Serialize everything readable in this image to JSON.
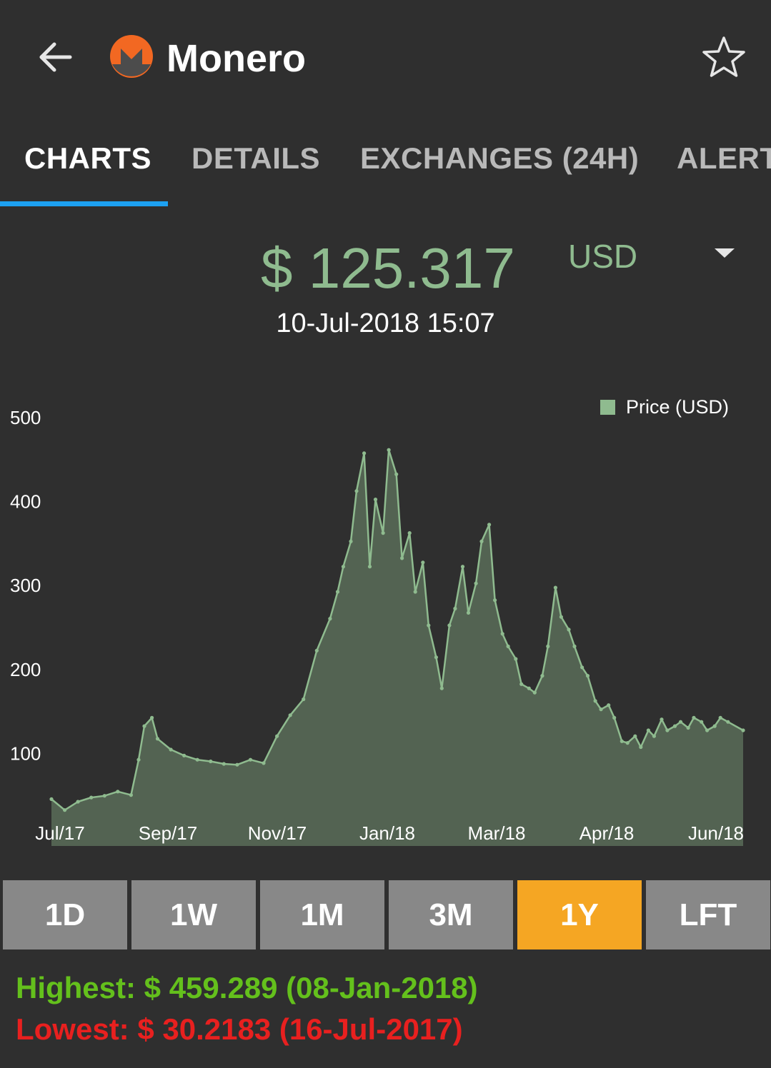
{
  "colors": {
    "background": "#2f2f2f",
    "price_green": "#8fbb8f",
    "tab_indicator": "#1da1f2",
    "range_active": "#f5a623",
    "range_inactive": "#888888",
    "highest": "#64c01c",
    "lowest": "#e8201f"
  },
  "header": {
    "title": "Monero",
    "back_icon": "arrow-left-icon",
    "logo_icon": "monero-logo",
    "favorite_icon": "star-outline-icon"
  },
  "tabs": [
    {
      "label": "CHARTS",
      "active": true
    },
    {
      "label": "DETAILS",
      "active": false
    },
    {
      "label": "EXCHANGES (24H)",
      "active": false
    },
    {
      "label": "ALERT",
      "active": false
    }
  ],
  "price": {
    "value": "$ 125.317",
    "currency": "USD",
    "timestamp": "10-Jul-2018 15:07"
  },
  "chart_data": {
    "type": "area",
    "legend": "Price (USD)",
    "legend_position": "top-right",
    "ylim": [
      0,
      500
    ],
    "yticks": [
      "100",
      "200",
      "300",
      "400",
      "500"
    ],
    "xticks": [
      "Jul/17",
      "Sep/17",
      "Nov/17",
      "Jan/18",
      "Mar/18",
      "Apr/18",
      "Jun/18"
    ],
    "grid": false,
    "series": [
      {
        "name": "Price (USD)",
        "x": [
          "2017-07-10",
          "2017-07-17",
          "2017-07-24",
          "2017-07-31",
          "2017-08-07",
          "2017-08-14",
          "2017-08-21",
          "2017-08-25",
          "2017-08-28",
          "2017-09-01",
          "2017-09-04",
          "2017-09-11",
          "2017-09-18",
          "2017-09-25",
          "2017-10-02",
          "2017-10-09",
          "2017-10-16",
          "2017-10-23",
          "2017-10-30",
          "2017-11-06",
          "2017-11-13",
          "2017-11-20",
          "2017-11-27",
          "2017-12-04",
          "2017-12-08",
          "2017-12-11",
          "2017-12-15",
          "2017-12-18",
          "2017-12-22",
          "2017-12-25",
          "2017-12-28",
          "2018-01-01",
          "2018-01-04",
          "2018-01-08",
          "2018-01-11",
          "2018-01-15",
          "2018-01-18",
          "2018-01-22",
          "2018-01-25",
          "2018-01-29",
          "2018-02-01",
          "2018-02-05",
          "2018-02-08",
          "2018-02-12",
          "2018-02-15",
          "2018-02-19",
          "2018-02-22",
          "2018-02-26",
          "2018-03-01",
          "2018-03-05",
          "2018-03-08",
          "2018-03-12",
          "2018-03-15",
          "2018-03-19",
          "2018-03-22",
          "2018-03-26",
          "2018-03-29",
          "2018-04-02",
          "2018-04-05",
          "2018-04-09",
          "2018-04-12",
          "2018-04-16",
          "2018-04-19",
          "2018-04-23",
          "2018-04-26",
          "2018-04-30",
          "2018-05-03",
          "2018-05-07",
          "2018-05-10",
          "2018-05-14",
          "2018-05-17",
          "2018-05-21",
          "2018-05-24",
          "2018-05-28",
          "2018-05-31",
          "2018-06-04",
          "2018-06-07",
          "2018-06-11",
          "2018-06-14",
          "2018-06-18",
          "2018-06-21",
          "2018-06-25",
          "2018-06-28",
          "2018-07-02",
          "2018-07-10"
        ],
        "values": [
          43,
          30,
          40,
          45,
          47,
          52,
          48,
          90,
          130,
          140,
          115,
          102,
          95,
          90,
          88,
          85,
          84,
          90,
          86,
          118,
          143,
          162,
          220,
          258,
          290,
          320,
          350,
          410,
          455,
          320,
          400,
          360,
          459,
          430,
          330,
          360,
          290,
          325,
          250,
          212,
          175,
          250,
          270,
          320,
          265,
          300,
          350,
          370,
          280,
          240,
          225,
          210,
          180,
          175,
          170,
          190,
          225,
          295,
          260,
          245,
          225,
          200,
          190,
          160,
          150,
          155,
          140,
          112,
          110,
          118,
          105,
          125,
          118,
          138,
          125,
          130,
          135,
          128,
          140,
          135,
          125,
          130,
          140,
          135,
          125
        ]
      }
    ]
  },
  "ranges": [
    {
      "label": "1D",
      "active": false
    },
    {
      "label": "1W",
      "active": false
    },
    {
      "label": "1M",
      "active": false
    },
    {
      "label": "3M",
      "active": false
    },
    {
      "label": "1Y",
      "active": true
    },
    {
      "label": "LFT",
      "active": false
    }
  ],
  "stats": {
    "highest": "Highest: $ 459.289 (08-Jan-2018)",
    "lowest": "Lowest: $ 30.2183 (16-Jul-2017)"
  }
}
